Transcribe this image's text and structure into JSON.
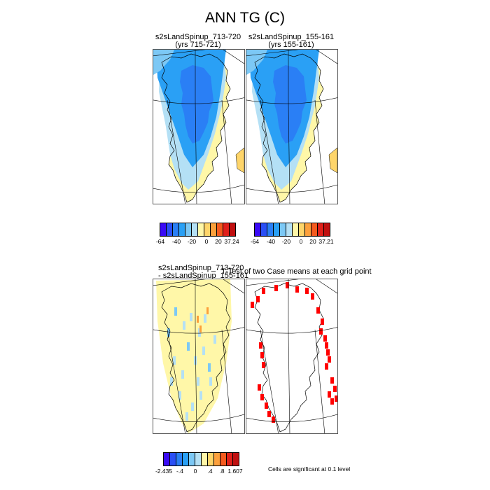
{
  "title": "ANN TG (C)",
  "panels": [
    {
      "id": "case1",
      "title_line1": "s2sLandSpinup_713-720",
      "title_line2": "(yrs 715-721)"
    },
    {
      "id": "case2",
      "title_line1": "s2sLandSpinup_155-161",
      "title_line2": "(yrs 155-161)"
    },
    {
      "id": "diff",
      "title_line1": "s2sLandSpinup_713-720",
      "title_line2": "- s2sLandSpinup_155-161"
    },
    {
      "id": "ttest",
      "title_line1": "T-Test of two Case means at each grid point",
      "title_line2": ""
    }
  ],
  "colorbars": {
    "case1": {
      "colors": [
        "#3a0bf5",
        "#2a4ff5",
        "#2a7ff5",
        "#2aa0f5",
        "#7cc8f5",
        "#b4e0f5",
        "#fff7a8",
        "#fed56a",
        "#fca03c",
        "#f55a1e",
        "#e0201a",
        "#c01010"
      ],
      "labels": [
        "-64",
        "-40",
        "-20",
        "0",
        "20",
        "37.24"
      ]
    },
    "case2": {
      "colors": [
        "#3a0bf5",
        "#2a4ff5",
        "#2a7ff5",
        "#2aa0f5",
        "#7cc8f5",
        "#b4e0f5",
        "#fff7a8",
        "#fed56a",
        "#fca03c",
        "#f55a1e",
        "#e0201a",
        "#c01010"
      ],
      "labels": [
        "-64",
        "-40",
        "-20",
        "0",
        "20",
        "37.21"
      ]
    },
    "diff": {
      "colors": [
        "#3a0bf5",
        "#2a4ff5",
        "#2a7ff5",
        "#2aa0f5",
        "#7cc8f5",
        "#b4e0f5",
        "#fff7a8",
        "#fed56a",
        "#fca03c",
        "#f55a1e",
        "#e0201a",
        "#c01010"
      ],
      "labels": [
        "-2.435",
        "-.4",
        "0",
        ".4",
        ".8",
        "1.607"
      ]
    }
  },
  "significance_note": "Cells are significant at 0.1 level",
  "chart_data": [
    {
      "type": "heatmap",
      "panel": "case1",
      "variable": "ANN TG",
      "unit": "C",
      "colorbar_range": [
        -64,
        37.24
      ],
      "colorbar_labels": [
        "-64",
        "-40",
        "-20",
        "0",
        "20",
        "37.24"
      ]
    },
    {
      "type": "heatmap",
      "panel": "case2",
      "variable": "ANN TG",
      "unit": "C",
      "colorbar_range": [
        -64,
        37.21
      ],
      "colorbar_labels": [
        "-64",
        "-40",
        "-20",
        "0",
        "20",
        "37.21"
      ]
    },
    {
      "type": "heatmap",
      "panel": "diff",
      "variable": "ANN TG difference",
      "colorbar_range": [
        -2.435,
        1.607
      ],
      "colorbar_labels": [
        "-2.435",
        "-.4",
        "0",
        ".4",
        ".8",
        "1.607"
      ]
    },
    {
      "type": "heatmap",
      "panel": "ttest",
      "note": "Cells are significant at 0.1 level"
    }
  ]
}
